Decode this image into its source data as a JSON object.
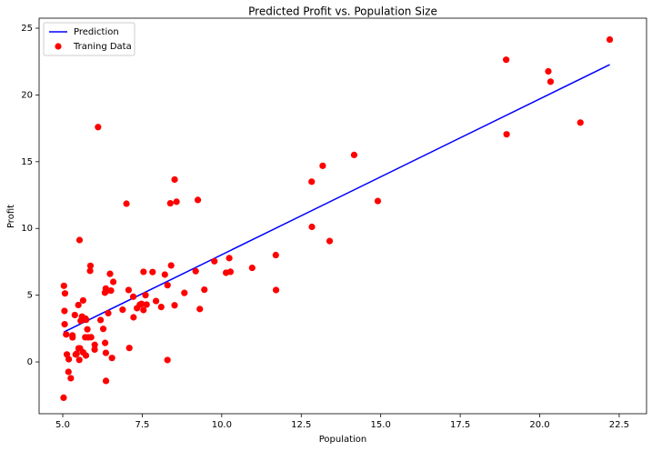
{
  "chart_data": {
    "type": "scatter",
    "title": "Predicted Profit vs. Population Size",
    "x_label": "Population",
    "y_label": "Profit",
    "legend": "upper left",
    "xlim": [
      4.256,
      23.36
    ],
    "ylim": [
      -3.88,
      25.75
    ],
    "xticks": [
      {
        "value": 5.0,
        "label": "5.0"
      },
      7.5,
      {
        "value": 10.0,
        "label": "10.0"
      },
      12.5,
      {
        "value": 15.0,
        "label": "15.0"
      },
      17.5,
      {
        "value": 20.0,
        "label": "20.0"
      },
      22.5
    ],
    "yticks": [
      0,
      5,
      10,
      15,
      20,
      25
    ],
    "series": [
      {
        "name": "Prediction",
        "type": "line",
        "color": "#0000ff",
        "x": [
          5.0269,
          22.203
        ],
        "values": [
          2.23,
          22.27
        ]
      },
      {
        "name": "Traning Data",
        "type": "scatter",
        "color": "#ff0000",
        "x": [
          6.1101,
          5.5277,
          8.5186,
          7.0032,
          5.8598,
          8.3829,
          7.4764,
          8.5781,
          6.4862,
          5.0546,
          5.7107,
          14.164,
          5.734,
          8.4084,
          5.6407,
          5.3794,
          6.3654,
          5.1301,
          6.4296,
          7.0708,
          6.1891,
          20.27,
          5.4901,
          6.3261,
          5.5649,
          18.945,
          12.828,
          10.957,
          13.176,
          22.203,
          5.2524,
          6.5894,
          9.2482,
          5.8918,
          8.2111,
          7.9334,
          8.0959,
          5.6063,
          12.836,
          6.3534,
          5.4069,
          6.8825,
          11.708,
          5.7737,
          7.8247,
          7.0931,
          5.0702,
          5.8014,
          11.7,
          5.5416,
          7.5402,
          5.3077,
          7.4239,
          7.6031,
          6.3328,
          6.3589,
          6.2742,
          5.6397,
          9.3102,
          9.4536,
          8.8254,
          5.1793,
          21.279,
          14.908,
          18.959,
          7.2182,
          8.2951,
          10.236,
          5.4994,
          20.341,
          10.136,
          7.3345,
          6.0062,
          7.2259,
          5.0269,
          6.5479,
          7.5386,
          5.0365,
          10.274,
          5.1077,
          5.7292,
          5.1884,
          6.3557,
          9.7687,
          6.5159,
          8.5172,
          9.1802,
          6.002,
          5.5204,
          5.0594,
          5.7077,
          7.6366,
          5.8707,
          5.3054,
          8.2934,
          13.394,
          5.4369
        ],
        "values": [
          17.592,
          9.1302,
          13.662,
          11.854,
          6.8233,
          11.886,
          4.3483,
          12,
          6.5987,
          3.8166,
          3.2522,
          15.505,
          3.1551,
          7.2258,
          0.71618,
          3.5129,
          5.3048,
          0.56077,
          3.6518,
          5.3893,
          3.1386,
          21.767,
          4.263,
          5.1875,
          3.0825,
          22.638,
          13.501,
          7.0467,
          14.692,
          24.147,
          -1.22,
          5.9966,
          12.134,
          1.8495,
          6.5426,
          4.5623,
          4.1164,
          3.3928,
          10.117,
          5.4974,
          0.55657,
          3.9115,
          5.3854,
          2.4406,
          6.7318,
          1.0463,
          5.1337,
          1.844,
          8.0043,
          1.0179,
          6.7504,
          1.8396,
          4.2885,
          4.9981,
          1.4233,
          -1.4211,
          2.4756,
          4.6042,
          3.9624,
          5.4141,
          5.1694,
          -0.74279,
          17.929,
          12.054,
          17.054,
          4.8852,
          5.7442,
          7.7754,
          1.0173,
          20.992,
          6.6799,
          4.0259,
          1.2784,
          3.3411,
          -2.6807,
          0.29678,
          3.8845,
          5.7014,
          6.7526,
          2.0576,
          0.47953,
          0.20421,
          0.67861,
          7.5435,
          5.3436,
          4.2415,
          6.7981,
          0.92695,
          0.152,
          2.8214,
          1.8451,
          4.2959,
          7.2029,
          1.9869,
          0.14454,
          9.0551,
          0.61705
        ]
      }
    ]
  }
}
